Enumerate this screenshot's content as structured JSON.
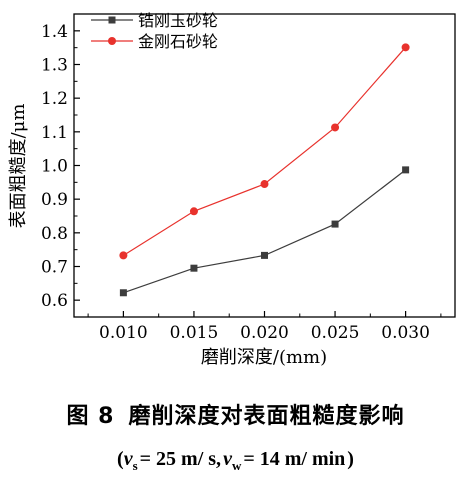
{
  "chart_data": {
    "type": "line",
    "xlabel": "磨削深度/(mm)",
    "ylabel": "表面粗糙度/μm",
    "x": [
      0.01,
      0.015,
      0.02,
      0.025,
      0.03
    ],
    "x_ticks": [
      "0.010",
      "0.015",
      "0.020",
      "0.025",
      "0.030"
    ],
    "y_ticks": [
      "0.6",
      "0.7",
      "0.8",
      "0.9",
      "1.0",
      "1.1",
      "1.2",
      "1.3",
      "1.4"
    ],
    "xlim": [
      0.0065,
      0.0335
    ],
    "ylim": [
      0.55,
      1.45
    ],
    "grid": false,
    "legend_position": "top-left",
    "series": [
      {
        "name": "锆刚玉砂轮",
        "values": [
          0.622,
          0.695,
          0.733,
          0.826,
          0.987
        ],
        "color": "#3d3d3d",
        "marker": "square"
      },
      {
        "name": "金刚石砂轮",
        "values": [
          0.733,
          0.864,
          0.945,
          1.113,
          1.351
        ],
        "color": "#e8322d",
        "marker": "circle"
      }
    ]
  },
  "caption": {
    "figure_number": "图 8",
    "title": "磨削深度对表面粗糙度影响",
    "open_paren": "(",
    "vs_symbol": "v",
    "vs_sub": "s",
    "vs_value": "= 25 m/ s,",
    "vw_symbol": "v",
    "vw_sub": "w",
    "vw_value": "= 14 m/ min",
    "close_paren": ")"
  }
}
